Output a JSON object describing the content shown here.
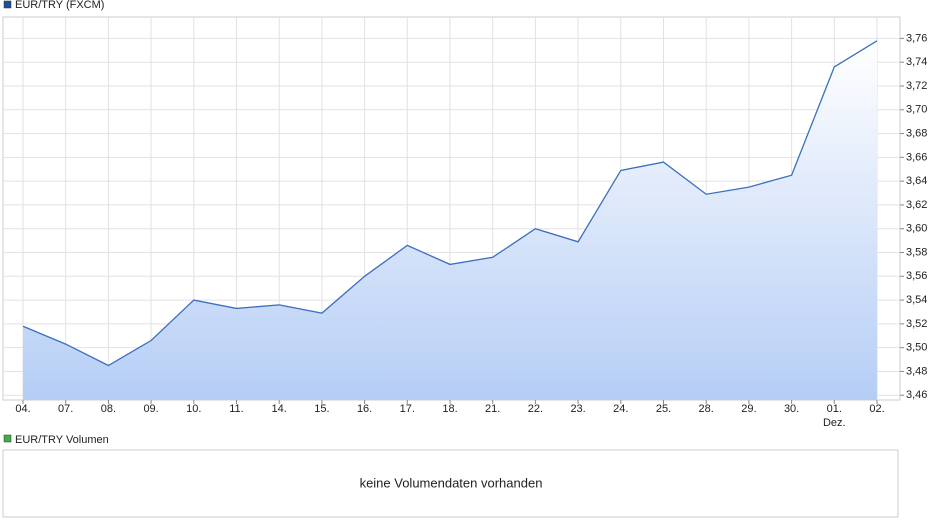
{
  "chart_data": {
    "type": "line",
    "categories": [
      "04.",
      "07.",
      "08.",
      "09.",
      "10.",
      "11.",
      "14.",
      "15.",
      "16.",
      "17.",
      "18.",
      "21.",
      "22.",
      "23.",
      "24.",
      "25.",
      "28.",
      "29.",
      "30.",
      "01.",
      "02."
    ],
    "x_annotations": [
      {
        "category": "01.",
        "text": "Dez."
      }
    ],
    "series": [
      {
        "name": "EUR/TRY (FXCM)",
        "color": "#3a6fbf",
        "legend_color": "#1f4e9c",
        "values": [
          3.518,
          3.503,
          3.485,
          3.506,
          3.54,
          3.533,
          3.536,
          3.529,
          3.56,
          3.586,
          3.57,
          3.576,
          3.6,
          3.589,
          3.649,
          3.656,
          3.629,
          3.635,
          3.645,
          3.736,
          3.758
        ]
      }
    ],
    "ylim": [
      3.456,
      3.778
    ],
    "yticks": [
      {
        "value": 3.46,
        "label": "3,46"
      },
      {
        "value": 3.48,
        "label": "3,48"
      },
      {
        "value": 3.5,
        "label": "3,50"
      },
      {
        "value": 3.52,
        "label": "3,52"
      },
      {
        "value": 3.54,
        "label": "3,54"
      },
      {
        "value": 3.56,
        "label": "3,56"
      },
      {
        "value": 3.58,
        "label": "3,58"
      },
      {
        "value": 3.6,
        "label": "3,60"
      },
      {
        "value": 3.62,
        "label": "3,62"
      },
      {
        "value": 3.64,
        "label": "3,64"
      },
      {
        "value": 3.66,
        "label": "3,66"
      },
      {
        "value": 3.68,
        "label": "3,68"
      },
      {
        "value": 3.7,
        "label": "3,70"
      },
      {
        "value": 3.72,
        "label": "3,72"
      },
      {
        "value": 3.74,
        "label": "3,74"
      },
      {
        "value": 3.76,
        "label": "3,76"
      }
    ],
    "grid": true
  },
  "volume_panel": {
    "legend": "EUR/TRY Volumen",
    "color": "#3cb043",
    "message": "keine Volumendaten vorhanden"
  }
}
